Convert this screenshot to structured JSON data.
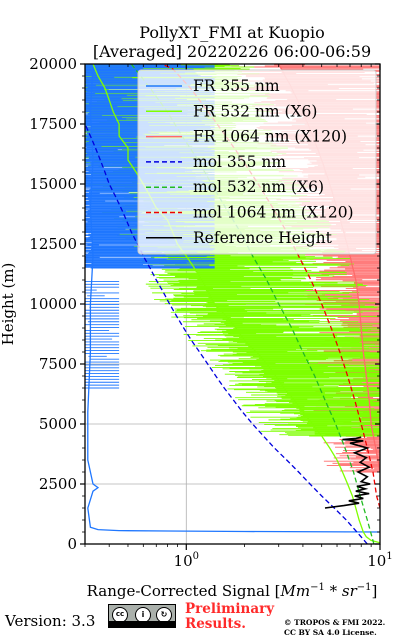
{
  "chart_data": {
    "type": "line",
    "title": "PollyXT_FMI at Kuopio",
    "subtitle": "[Averaged] 20220226 06:00-06:59",
    "xlabel_text": "Range-Corrected Signal [",
    "xlabel_math": "Mm",
    "xlabel_exp1": "−1",
    "xlabel_mid": " * sr",
    "xlabel_exp2": "−1",
    "xlabel_end": "]",
    "ylabel": "Height (m)",
    "x_scale": "log",
    "xlim": [
      0.3,
      10
    ],
    "ylim": [
      0,
      20000
    ],
    "x_tick_values": [
      1,
      10
    ],
    "x_tick_labels": [
      {
        "base": "10",
        "exp": "0"
      },
      {
        "base": "10",
        "exp": "1"
      }
    ],
    "y_ticks": [
      {
        "value": 0,
        "label": "0"
      },
      {
        "value": 2500,
        "label": "2500"
      },
      {
        "value": 5000,
        "label": "5000"
      },
      {
        "value": 7500,
        "label": "7500"
      },
      {
        "value": 10000,
        "label": "10000"
      },
      {
        "value": 12500,
        "label": "12500"
      },
      {
        "value": 15000,
        "label": "15000"
      },
      {
        "value": 17500,
        "label": "17500"
      },
      {
        "value": 20000,
        "label": "20000"
      }
    ],
    "grid": true,
    "legend_position": "top-right",
    "series": [
      {
        "name": "FR 355 nm",
        "style": "solid",
        "color": "#1f77ff",
        "points": [
          [
            10,
            500
          ],
          [
            2,
            520
          ],
          [
            0.8,
            540
          ],
          [
            0.45,
            560
          ],
          [
            0.35,
            600
          ],
          [
            0.32,
            700
          ],
          [
            0.31,
            1500
          ],
          [
            0.33,
            2200
          ],
          [
            0.35,
            2350
          ],
          [
            0.33,
            2500
          ],
          [
            0.31,
            3500
          ],
          [
            0.31,
            5500
          ],
          [
            0.32,
            8000
          ],
          [
            0.32,
            10000
          ],
          [
            0.33,
            12000
          ],
          [
            0.32,
            14000
          ],
          [
            0.33,
            16000
          ],
          [
            0.32,
            18000
          ],
          [
            0.33,
            20000
          ]
        ]
      },
      {
        "name": "FR 532 nm (X6)",
        "style": "solid",
        "color": "#7fff00",
        "points": [
          [
            10,
            50
          ],
          [
            9,
            150
          ],
          [
            8.5,
            300
          ],
          [
            8.2,
            500
          ],
          [
            7.8,
            1000
          ],
          [
            7.5,
            1500
          ],
          [
            7.2,
            2000
          ],
          [
            6.8,
            2500
          ],
          [
            6.4,
            3000
          ],
          [
            6,
            3500
          ],
          [
            5.5,
            4000
          ],
          [
            5,
            4500
          ],
          [
            4.5,
            5000
          ],
          [
            4,
            5500
          ],
          [
            3.6,
            6000
          ],
          [
            3.2,
            6500
          ],
          [
            2.9,
            7000
          ],
          [
            2.6,
            7500
          ],
          [
            2.3,
            8000
          ],
          [
            2,
            8500
          ],
          [
            1.8,
            9000
          ],
          [
            1.6,
            9500
          ],
          [
            1.4,
            10000
          ],
          [
            1.3,
            10500
          ],
          [
            1.2,
            11000
          ],
          [
            1.1,
            11500
          ],
          [
            1,
            12000
          ],
          [
            0.9,
            12500
          ],
          [
            0.85,
            13000
          ],
          [
            0.8,
            13500
          ],
          [
            0.7,
            14000
          ],
          [
            0.65,
            14500
          ],
          [
            0.6,
            15000
          ],
          [
            0.55,
            15500
          ],
          [
            0.5,
            16000
          ],
          [
            0.5,
            16500
          ],
          [
            0.45,
            17000
          ],
          [
            0.45,
            17500
          ],
          [
            0.42,
            18000
          ],
          [
            0.4,
            18500
          ],
          [
            0.38,
            19000
          ],
          [
            0.35,
            19500
          ],
          [
            0.33,
            20000
          ]
        ]
      },
      {
        "name": "FR 1064 nm (X120)",
        "style": "solid",
        "color": "#ff6a6a",
        "points": [
          [
            10,
            3000
          ],
          [
            9.5,
            4000
          ],
          [
            9,
            5000
          ],
          [
            8.8,
            6000
          ],
          [
            8.5,
            7000
          ],
          [
            8.2,
            8000
          ],
          [
            8,
            9000
          ],
          [
            7.8,
            10000
          ],
          [
            7.5,
            11000
          ],
          [
            7,
            12000
          ],
          [
            6.5,
            13000
          ],
          [
            6,
            14000
          ],
          [
            5.5,
            15000
          ],
          [
            5,
            16000
          ],
          [
            4.5,
            17000
          ],
          [
            4,
            18000
          ],
          [
            3.5,
            19000
          ],
          [
            3,
            20000
          ]
        ]
      },
      {
        "name": "mol 355 nm",
        "style": "dashed",
        "color": "#0000dd",
        "points": [
          [
            8.6,
            0
          ],
          [
            7.6,
            500
          ],
          [
            6.7,
            1000
          ],
          [
            5.8,
            1500
          ],
          [
            5,
            2000
          ],
          [
            4.35,
            2500
          ],
          [
            3.8,
            3000
          ],
          [
            3.3,
            3500
          ],
          [
            2.85,
            4000
          ],
          [
            2.5,
            4500
          ],
          [
            2.2,
            5000
          ],
          [
            1.95,
            5500
          ],
          [
            1.75,
            6000
          ],
          [
            1.57,
            6500
          ],
          [
            1.42,
            7000
          ],
          [
            1.29,
            7500
          ],
          [
            1.17,
            8000
          ],
          [
            1.06,
            8500
          ],
          [
            0.97,
            9000
          ],
          [
            0.89,
            9500
          ],
          [
            0.82,
            10000
          ],
          [
            0.76,
            10500
          ],
          [
            0.7,
            11000
          ],
          [
            0.65,
            11500
          ],
          [
            0.6,
            12000
          ],
          [
            0.56,
            12500
          ],
          [
            0.52,
            13000
          ],
          [
            0.49,
            13500
          ],
          [
            0.46,
            14000
          ],
          [
            0.43,
            14500
          ],
          [
            0.4,
            15000
          ],
          [
            0.38,
            15500
          ],
          [
            0.36,
            16000
          ],
          [
            0.34,
            16500
          ],
          [
            0.32,
            17000
          ],
          [
            0.3,
            17500
          ]
        ]
      },
      {
        "name": "mol 532 nm (X6)",
        "style": "dashed",
        "color": "#22bb22",
        "points": [
          [
            9.3,
            0
          ],
          [
            8.6,
            1000
          ],
          [
            7.9,
            2000
          ],
          [
            7.3,
            3000
          ],
          [
            6.6,
            4000
          ],
          [
            5.9,
            5000
          ],
          [
            5.2,
            6000
          ],
          [
            4.6,
            7000
          ],
          [
            4,
            8000
          ],
          [
            3.5,
            9000
          ],
          [
            3,
            10000
          ],
          [
            2.6,
            11000
          ],
          [
            2.2,
            12000
          ],
          [
            1.9,
            13000
          ],
          [
            1.6,
            14000
          ],
          [
            1.35,
            15000
          ],
          [
            1.15,
            16000
          ],
          [
            0.95,
            17000
          ],
          [
            0.8,
            18000
          ],
          [
            0.65,
            19000
          ],
          [
            0.52,
            20000
          ]
        ]
      },
      {
        "name": "mol 1064 nm (X120)",
        "style": "dashed",
        "color": "#ee0000",
        "points": [
          [
            10,
            1500
          ],
          [
            9.6,
            2000
          ],
          [
            9.2,
            3000
          ],
          [
            8.6,
            4000
          ],
          [
            8,
            5000
          ],
          [
            7.4,
            6000
          ],
          [
            6.8,
            7000
          ],
          [
            6.2,
            8000
          ],
          [
            5.6,
            9000
          ],
          [
            5,
            10000
          ],
          [
            4.4,
            11000
          ],
          [
            3.8,
            12000
          ],
          [
            3.3,
            13000
          ],
          [
            2.8,
            14000
          ],
          [
            2.35,
            15000
          ],
          [
            1.95,
            16000
          ],
          [
            1.6,
            17000
          ],
          [
            1.3,
            18000
          ],
          [
            1.05,
            19000
          ],
          [
            0.85,
            19800
          ],
          [
            0.75,
            20000
          ]
        ]
      },
      {
        "name": "Reference Height",
        "style": "solid",
        "color": "#000000",
        "points": [
          [
            5.2,
            1500
          ],
          [
            6.5,
            1600
          ],
          [
            7.8,
            1700
          ],
          [
            6.9,
            1800
          ],
          [
            8.2,
            1900
          ],
          [
            7.4,
            2000
          ],
          [
            8.8,
            2100
          ],
          [
            7.5,
            2200
          ],
          [
            8.4,
            2300
          ],
          [
            7.6,
            2400
          ],
          [
            8.9,
            2500
          ],
          [
            8.0,
            2600
          ],
          [
            8.6,
            2800
          ],
          [
            7.7,
            3000
          ],
          [
            8.8,
            3200
          ],
          [
            7.9,
            3400
          ],
          [
            8.5,
            3600
          ],
          [
            7.4,
            3800
          ],
          [
            8.6,
            4000
          ],
          [
            7.0,
            4200
          ],
          [
            8.2,
            4300
          ],
          [
            6.4,
            4350
          ],
          [
            7.5,
            4400
          ],
          [
            8.0,
            4450
          ]
        ]
      }
    ]
  },
  "footer": {
    "version_label": "Version: 3.3",
    "license_badge": {
      "icon": "cc-by-sa-icon",
      "labels": [
        "BY",
        "SA"
      ]
    },
    "preliminary_line1": "Preliminary",
    "preliminary_line2": "Results.",
    "copyright_line1": "© TROPOS & FMI 2022.",
    "copyright_line2": "CC BY SA 4.0 License."
  }
}
